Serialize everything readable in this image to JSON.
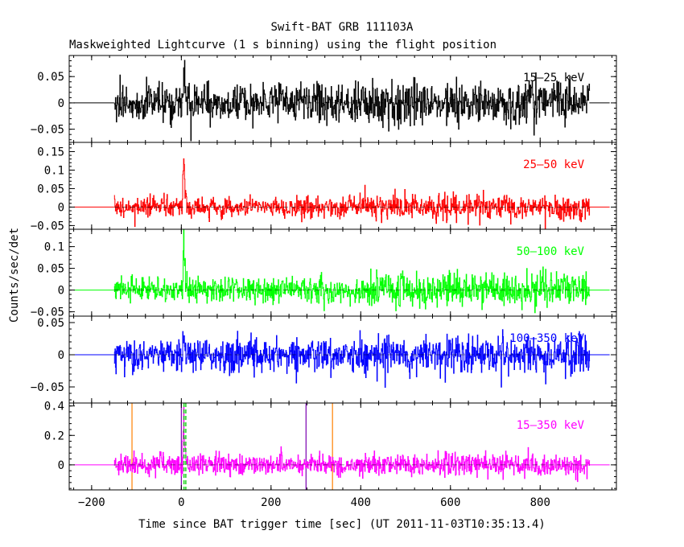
{
  "title": "Swift-BAT GRB 111103A",
  "subtitle": "Maskweighted Lightcurve (1 s binning) using the flight position",
  "ylabel": "Counts/sec/det",
  "xlabel": "Time since BAT trigger time [sec] (UT 2011-11-03T10:35:13.4)",
  "colors": {
    "frame": "#000000",
    "orange_line": "#ff8000",
    "purple_line": "#7a00b0",
    "green_dashed": "#00cc00"
  },
  "chart_data": {
    "type": "line",
    "x_range": [
      -250,
      970
    ],
    "x_ticks": [
      -200,
      0,
      200,
      400,
      600,
      800
    ],
    "x_tick_labels": [
      "−200",
      "0",
      "200",
      "400",
      "600",
      "800"
    ],
    "data_start": -150,
    "data_end": 910,
    "flat_start": -240,
    "flat_end": 955,
    "burst_time": 5,
    "series": [
      {
        "name": "15–25 keV",
        "color": "#000000",
        "ylim": [
          -0.075,
          0.09
        ],
        "yticks": [
          -0.05,
          0,
          0.05
        ],
        "ytick_labels": [
          "−0.05",
          "0",
          "0.05"
        ],
        "noise_sigma": 0.018,
        "noise_sigma_late": 0.02,
        "burst_peak": 0.085
      },
      {
        "name": "25–50 keV",
        "color": "#ff0000",
        "ylim": [
          -0.06,
          0.175
        ],
        "yticks": [
          -0.05,
          0,
          0.05,
          0.1,
          0.15
        ],
        "ytick_labels": [
          "−0.05",
          "0",
          "0.05",
          "0.1",
          "0.15"
        ],
        "noise_sigma": 0.013,
        "noise_sigma_late": 0.017,
        "burst_peak": 0.165
      },
      {
        "name": "50–100 keV",
        "color": "#00ff00",
        "ylim": [
          -0.06,
          0.14
        ],
        "yticks": [
          -0.05,
          0,
          0.05,
          0.1
        ],
        "ytick_labels": [
          "−0.05",
          "0",
          "0.05",
          "0.1"
        ],
        "noise_sigma": 0.015,
        "noise_sigma_late": 0.019,
        "burst_peak": 0.135
      },
      {
        "name": "100–350 keV",
        "color": "#0000ff",
        "ylim": [
          -0.075,
          0.06
        ],
        "yticks": [
          -0.05,
          0,
          0.05
        ],
        "ytick_labels": [
          "−0.05",
          "0",
          "0.05"
        ],
        "noise_sigma": 0.013,
        "noise_sigma_late": 0.015,
        "burst_peak": 0.05
      },
      {
        "name": "15–350 keV",
        "color": "#ff00ff",
        "ylim": [
          -0.17,
          0.42
        ],
        "yticks": [
          0,
          0.2,
          0.4
        ],
        "ytick_labels": [
          "0",
          "0.2",
          "0.4"
        ],
        "noise_sigma": 0.035,
        "noise_sigma_late": 0.04,
        "burst_peak": 0.38
      }
    ],
    "markers": {
      "orange_lines": [
        -110,
        337
      ],
      "purple_lines": [
        0,
        278
      ],
      "green_dashed": [
        6,
        10
      ]
    }
  }
}
